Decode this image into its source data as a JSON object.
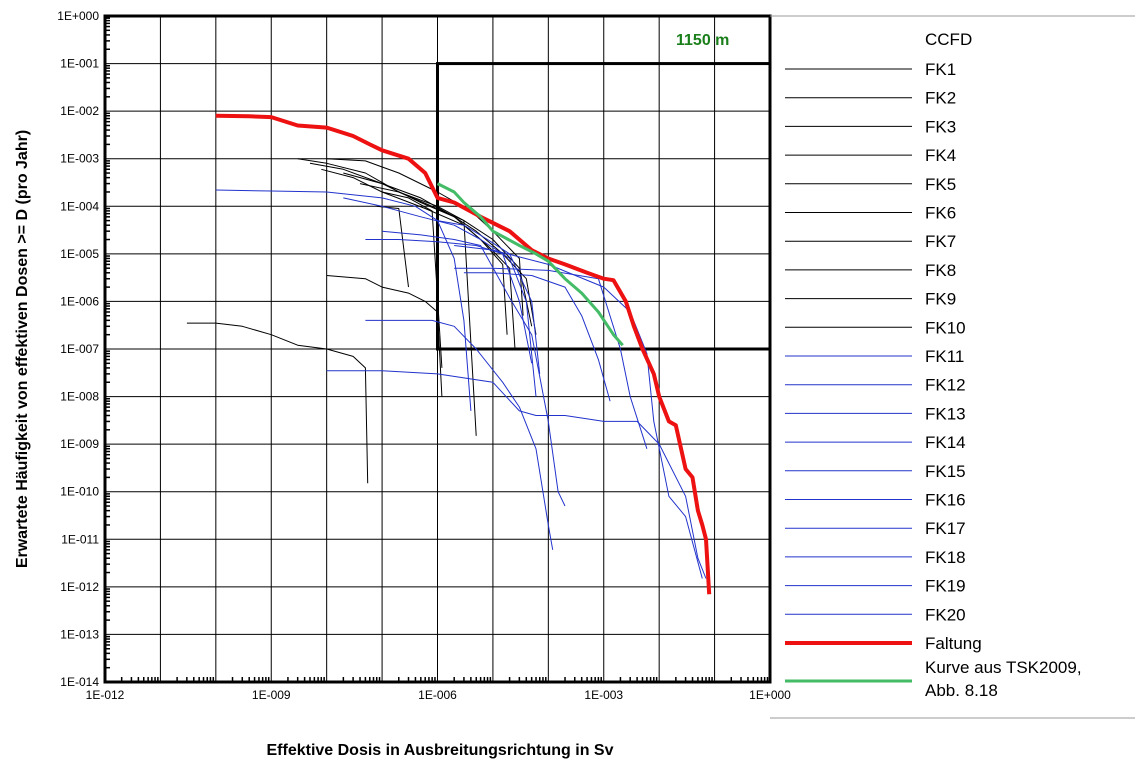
{
  "chart_data": {
    "type": "line",
    "title": "",
    "annotation": "1150 m",
    "annotation_color": "#1a7f1a",
    "xlabel": "Effektive Dosis in Ausbreitungsrichtung in Sv",
    "ylabel": "Erwartete Häufigkeit von effektiven Dosen >= D (pro Jahr)",
    "x_scale": "log",
    "y_scale": "log",
    "xlim": [
      1e-12,
      1
    ],
    "ylim": [
      1e-14,
      1
    ],
    "x_tick_labels": [
      "1E-012",
      "1E-009",
      "1E-006",
      "1E-003",
      "1E+000"
    ],
    "y_tick_labels": [
      "1E+000",
      "1E-001",
      "1E-002",
      "1E-003",
      "1E-004",
      "1E-005",
      "1E-006",
      "1E-007",
      "1E-008",
      "1E-009",
      "1E-010",
      "1E-011",
      "1E-012",
      "1E-013",
      "1E-014"
    ],
    "grid": true,
    "legend_position": "right",
    "legend_title": "CCFD",
    "highlight_box": {
      "x": [
        1e-06,
        1
      ],
      "y": [
        1e-07,
        0.1
      ]
    },
    "series": [
      {
        "name": "FK1",
        "color": "#000000",
        "points": [
          [
            3e-09,
            0.001
          ],
          [
            1e-08,
            0.0008
          ],
          [
            5e-08,
            0.0005
          ],
          [
            2e-07,
            0.0002
          ],
          [
            1e-06,
            0.0001
          ],
          [
            3e-06,
            5e-05
          ],
          [
            1e-05,
            2e-05
          ],
          [
            3e-05,
            5e-06
          ],
          [
            5e-05,
            3e-07
          ]
        ]
      },
      {
        "name": "FK2",
        "color": "#000000",
        "points": [
          [
            5e-09,
            0.0008
          ],
          [
            2e-08,
            0.0006
          ],
          [
            1e-07,
            0.0003
          ],
          [
            5e-07,
            0.00012
          ],
          [
            2e-06,
            6e-05
          ],
          [
            5e-06,
            3e-05
          ],
          [
            1.5e-05,
            1e-05
          ],
          [
            4e-05,
            3e-06
          ],
          [
            6e-05,
            2e-07
          ]
        ]
      },
      {
        "name": "FK3",
        "color": "#000000",
        "points": [
          [
            8e-09,
            0.0006
          ],
          [
            3e-08,
            0.0004
          ],
          [
            1e-07,
            0.0002
          ],
          [
            6e-07,
            9e-05
          ],
          [
            3e-06,
            4e-05
          ],
          [
            8e-06,
            1.5e-05
          ],
          [
            2e-05,
            5e-06
          ],
          [
            2.5e-05,
            1e-07
          ]
        ]
      },
      {
        "name": "FK4",
        "color": "#000000",
        "points": [
          [
            1e-08,
            0.001
          ],
          [
            5e-08,
            0.0009
          ],
          [
            2e-07,
            0.0005
          ],
          [
            1e-06,
            0.0002
          ],
          [
            4e-06,
            8e-05
          ],
          [
            1e-05,
            3e-05
          ],
          [
            3e-05,
            8e-06
          ],
          [
            3.5e-05,
            5e-07
          ]
        ]
      },
      {
        "name": "FK5",
        "color": "#000000",
        "points": [
          [
            2e-08,
            0.0005
          ],
          [
            1e-07,
            0.0003
          ],
          [
            5e-07,
            0.00015
          ],
          [
            2e-06,
            6e-05
          ],
          [
            6e-06,
            2e-05
          ],
          [
            1.5e-05,
            6e-06
          ],
          [
            1.8e-05,
            2e-07
          ]
        ]
      },
      {
        "name": "FK6",
        "color": "#000000",
        "points": [
          [
            4e-08,
            0.0003
          ],
          [
            2e-07,
            0.0002
          ],
          [
            8e-07,
            0.0001
          ],
          [
            3e-06,
            5e-05
          ],
          [
            5e-06,
            1.5e-09
          ]
        ]
      },
      {
        "name": "FK7",
        "color": "#000000",
        "points": [
          [
            1e-07,
            0.0002
          ],
          [
            3e-07,
            0.00015
          ],
          [
            8e-07,
            8e-05
          ],
          [
            1.2e-06,
            4e-08
          ]
        ]
      },
      {
        "name": "FK8",
        "color": "#000000",
        "points": [
          [
            8e-08,
            0.0001
          ],
          [
            2e-07,
            9e-05
          ],
          [
            3e-07,
            2e-06
          ]
        ]
      },
      {
        "name": "FK9",
        "color": "#000000",
        "points": [
          [
            1e-08,
            3.5e-06
          ],
          [
            5e-08,
            3e-06
          ],
          [
            1e-07,
            2e-06
          ],
          [
            3e-07,
            1.5e-06
          ],
          [
            6e-07,
            1e-06
          ],
          [
            1e-06,
            6e-07
          ],
          [
            1.2e-06,
            1e-08
          ]
        ]
      },
      {
        "name": "FK10",
        "color": "#000000",
        "points": [
          [
            3e-11,
            3.5e-07
          ],
          [
            1e-10,
            3.5e-07
          ],
          [
            3e-10,
            3e-07
          ],
          [
            1e-09,
            2e-07
          ],
          [
            3e-09,
            1.2e-07
          ],
          [
            1e-08,
            1e-07
          ],
          [
            3e-08,
            7e-08
          ],
          [
            5e-08,
            4e-08
          ],
          [
            5.5e-08,
            1.5e-10
          ]
        ]
      },
      {
        "name": "FK11",
        "color": "#2233cc",
        "points": [
          [
            1e-10,
            0.00022
          ],
          [
            1e-09,
            0.00021
          ],
          [
            1e-08,
            0.0002
          ],
          [
            1e-07,
            0.00015
          ],
          [
            4e-07,
            0.0001
          ],
          [
            1e-06,
            5e-05
          ],
          [
            2e-06,
            8e-06
          ],
          [
            3e-06,
            4e-07
          ],
          [
            4e-06,
            5e-09
          ]
        ]
      },
      {
        "name": "FK12",
        "color": "#2233cc",
        "points": [
          [
            2e-08,
            0.00015
          ],
          [
            1e-07,
            0.0001
          ],
          [
            5e-07,
            6e-05
          ],
          [
            2e-06,
            4e-05
          ],
          [
            6e-06,
            2e-05
          ],
          [
            2e-05,
            8e-06
          ],
          [
            4e-05,
            1e-06
          ],
          [
            6e-05,
            1e-08
          ]
        ]
      },
      {
        "name": "FK13",
        "color": "#2233cc",
        "points": [
          [
            5e-08,
            2e-05
          ],
          [
            2e-07,
            2e-05
          ],
          [
            1e-06,
            1.8e-05
          ],
          [
            5e-06,
            1.5e-05
          ],
          [
            1.5e-05,
            1e-05
          ],
          [
            3e-05,
            1e-06
          ],
          [
            5e-05,
            5e-08
          ]
        ]
      },
      {
        "name": "FK14",
        "color": "#2233cc",
        "points": [
          [
            1e-07,
            3e-05
          ],
          [
            5e-07,
            2.5e-05
          ],
          [
            2e-06,
            2e-05
          ],
          [
            6e-06,
            1.5e-05
          ],
          [
            2e-05,
            1.2e-06
          ],
          [
            5e-05,
            2e-07
          ],
          [
            0.0001,
            3e-09
          ],
          [
            0.00015,
            1e-10
          ],
          [
            0.0002,
            5e-11
          ]
        ]
      },
      {
        "name": "FK15",
        "color": "#2233cc",
        "points": [
          [
            1e-06,
            5e-05
          ],
          [
            3e-06,
            4e-05
          ],
          [
            8e-06,
            2e-05
          ],
          [
            2e-05,
            1e-05
          ],
          [
            5e-05,
            1e-06
          ],
          [
            7e-05,
            3e-08
          ]
        ]
      },
      {
        "name": "FK16",
        "color": "#2233cc",
        "points": [
          [
            5e-08,
            4e-07
          ],
          [
            2e-07,
            4e-07
          ],
          [
            8e-07,
            4e-07
          ],
          [
            2e-06,
            3e-07
          ],
          [
            5e-06,
            1e-07
          ],
          [
            1.5e-05,
            2e-08
          ],
          [
            3e-05,
            6e-09
          ],
          [
            6e-05,
            8e-10
          ],
          [
            0.0001,
            2e-11
          ],
          [
            0.00012,
            6e-12
          ]
        ]
      },
      {
        "name": "FK17",
        "color": "#2233cc",
        "points": [
          [
            3e-06,
            4e-06
          ],
          [
            1e-05,
            4e-06
          ],
          [
            5e-05,
            3.5e-06
          ],
          [
            0.0002,
            2e-06
          ],
          [
            0.0004,
            5e-07
          ],
          [
            0.0008,
            6e-08
          ],
          [
            0.0013,
            8e-09
          ]
        ]
      },
      {
        "name": "FK18",
        "color": "#2233cc",
        "points": [
          [
            2e-06,
            5e-06
          ],
          [
            1e-05,
            5e-06
          ],
          [
            0.0001,
            4.5e-06
          ],
          [
            0.0008,
            3e-06
          ],
          [
            0.002,
            1e-07
          ],
          [
            0.003,
            1e-08
          ],
          [
            0.006,
            8e-10
          ]
        ]
      },
      {
        "name": "FK19",
        "color": "#2233cc",
        "points": [
          [
            2e-06,
            1.5e-05
          ],
          [
            1e-05,
            1.2e-05
          ],
          [
            0.0001,
            6e-06
          ],
          [
            0.001,
            2e-06
          ],
          [
            0.003,
            6e-07
          ],
          [
            0.006,
            8e-08
          ],
          [
            0.008,
            3e-09
          ],
          [
            0.015,
            8e-11
          ],
          [
            0.03,
            3e-11
          ],
          [
            0.06,
            1.5e-12
          ]
        ]
      },
      {
        "name": "FK20",
        "color": "#2233cc",
        "points": [
          [
            1e-08,
            3.5e-08
          ],
          [
            1e-07,
            3.5e-08
          ],
          [
            1e-06,
            3e-08
          ],
          [
            1e-05,
            2e-08
          ],
          [
            3e-05,
            5e-09
          ],
          [
            6e-05,
            4e-09
          ],
          [
            0.0002,
            4e-09
          ],
          [
            0.001,
            3e-09
          ],
          [
            0.004,
            3e-09
          ],
          [
            0.01,
            1e-09
          ],
          [
            0.03,
            8e-11
          ],
          [
            0.05,
            4e-12
          ],
          [
            0.07,
            1.5e-12
          ]
        ]
      },
      {
        "name": "Faltung",
        "color": "#ee1111",
        "points": [
          [
            1e-10,
            0.008
          ],
          [
            4e-10,
            0.0078
          ],
          [
            1e-09,
            0.0075
          ],
          [
            3e-09,
            0.005
          ],
          [
            1e-08,
            0.0045
          ],
          [
            3e-08,
            0.003
          ],
          [
            6e-08,
            0.002
          ],
          [
            1e-07,
            0.0015
          ],
          [
            3e-07,
            0.001
          ],
          [
            6e-07,
            0.0005
          ],
          [
            1e-06,
            0.00015
          ],
          [
            2e-06,
            0.00012
          ],
          [
            6e-06,
            6e-05
          ],
          [
            2e-05,
            3e-05
          ],
          [
            5e-05,
            1.2e-05
          ],
          [
            0.0001,
            8e-06
          ],
          [
            0.0002,
            6e-06
          ],
          [
            0.0005,
            4e-06
          ],
          [
            0.001,
            3e-06
          ],
          [
            0.0015,
            2.8e-06
          ],
          [
            0.0025,
            1e-06
          ],
          [
            0.0035,
            3e-07
          ],
          [
            0.005,
            1e-07
          ],
          [
            0.008,
            3e-08
          ],
          [
            0.01,
            1e-08
          ],
          [
            0.015,
            3e-09
          ],
          [
            0.02,
            2.5e-09
          ],
          [
            0.03,
            3e-10
          ],
          [
            0.04,
            2e-10
          ],
          [
            0.05,
            4e-11
          ],
          [
            0.06,
            2e-11
          ],
          [
            0.07,
            1e-11
          ],
          [
            0.08,
            7e-13
          ]
        ]
      },
      {
        "name": "Kurve aus TSK2009, Abb. 8.18",
        "color": "#44bb66",
        "points": [
          [
            1e-06,
            0.0003
          ],
          [
            2e-06,
            0.0002
          ],
          [
            3e-06,
            0.00012
          ],
          [
            6e-06,
            6e-05
          ],
          [
            1e-05,
            3e-05
          ],
          [
            3e-05,
            1.5e-05
          ],
          [
            6e-05,
            1e-05
          ],
          [
            0.0001,
            7e-06
          ],
          [
            0.0002,
            3e-06
          ],
          [
            0.0004,
            1.5e-06
          ],
          [
            0.0008,
            6e-07
          ],
          [
            0.0015,
            2e-07
          ],
          [
            0.0022,
            1.2e-07
          ]
        ]
      }
    ]
  }
}
